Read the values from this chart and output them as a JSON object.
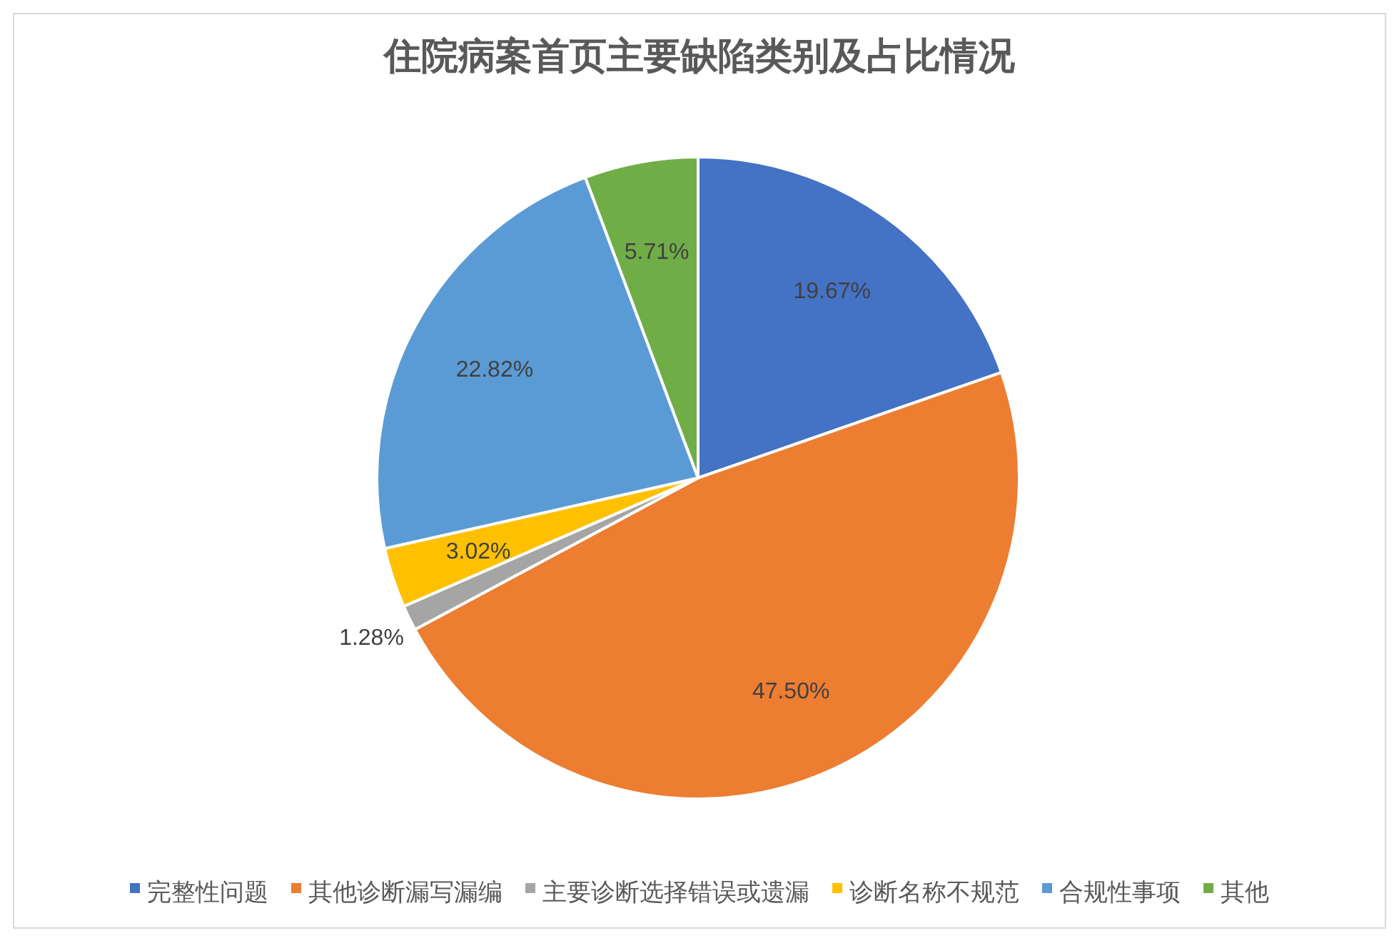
{
  "chart_data": {
    "type": "pie",
    "title": "住院病案首页主要缺陷类别及占比情况",
    "categories": [
      "完整性问题",
      "其他诊断漏写漏编",
      "主要诊断选择错误或遗漏",
      "诊断名称不规范",
      "合规性事项",
      "其他"
    ],
    "values": [
      19.67,
      47.5,
      1.28,
      3.02,
      22.82,
      5.71
    ],
    "colors": [
      "#4472c4",
      "#ed7d31",
      "#a5a5a5",
      "#ffc000",
      "#5b9bd5",
      "#70ad47"
    ],
    "value_labels": [
      "19.67%",
      "47.50%",
      "1.28%",
      "3.02%",
      "22.82%",
      "5.71%"
    ],
    "legend": "bottom"
  }
}
